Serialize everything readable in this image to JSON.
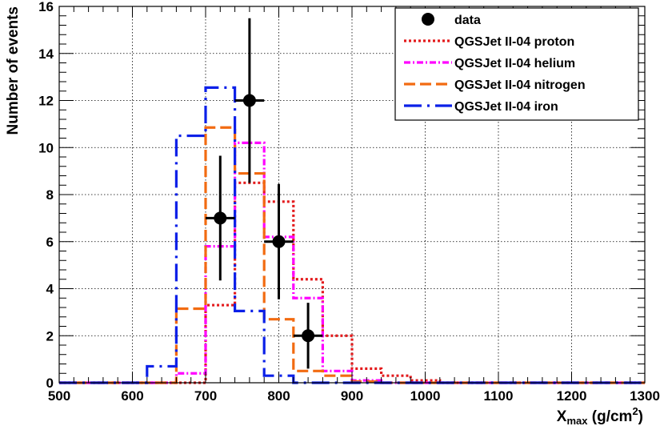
{
  "chart_data": {
    "type": "histogram",
    "xlabel_main": "X",
    "xlabel_sub": "max",
    "xlabel_unit": " (g/cm",
    "xlabel_sup": "2",
    "xlabel_close": ")",
    "ylabel": "Number of events",
    "xlim": [
      500,
      1300
    ],
    "ylim": [
      0,
      16
    ],
    "x_ticks": [
      "500",
      "600",
      "700",
      "800",
      "900",
      "1000",
      "1100",
      "1200",
      "1300"
    ],
    "y_ticks": [
      "0",
      "2",
      "4",
      "6",
      "8",
      "10",
      "12",
      "14",
      "16"
    ],
    "grid": true,
    "legend_position": "top-right",
    "bin_edges": [
      500,
      540,
      580,
      620,
      660,
      700,
      740,
      780,
      820,
      860,
      900,
      940,
      980,
      1020,
      1060,
      1100,
      1140,
      1180,
      1220,
      1260,
      1300
    ],
    "data": {
      "name": "data",
      "x": [
        720,
        760,
        800,
        840
      ],
      "y": [
        7,
        12,
        6,
        2
      ],
      "xerr": 20,
      "yerr_low": [
        2.65,
        3.5,
        2.45,
        1.4
      ],
      "yerr_high": [
        2.65,
        3.5,
        2.45,
        1.4
      ]
    },
    "series": [
      {
        "name": "QGSJet II-04 proton",
        "color": "#e31a1c",
        "style": "dotted",
        "values": [
          0,
          0,
          0,
          0,
          0,
          3.3,
          8.5,
          7.7,
          4.4,
          2.0,
          0.6,
          0.3,
          0.1,
          0,
          0,
          0,
          0,
          0,
          0,
          0
        ]
      },
      {
        "name": "QGSJet II-04 helium",
        "color": "#ff00ff",
        "style": "dashdot",
        "values": [
          0,
          0,
          0,
          0,
          0.4,
          5.8,
          10.2,
          6.2,
          3.6,
          0.5,
          0.1,
          0,
          0,
          0,
          0,
          0,
          0,
          0,
          0,
          0
        ]
      },
      {
        "name": "QGSJet II-04 nitrogen",
        "color": "#f26b11",
        "style": "dashed",
        "values": [
          0,
          0,
          0,
          0,
          3.15,
          10.85,
          8.9,
          2.7,
          0.5,
          0.3,
          0.05,
          0,
          0,
          0,
          0,
          0,
          0,
          0,
          0,
          0
        ]
      },
      {
        "name": "QGSJet II-04 iron",
        "color": "#0b20e8",
        "style": "longdashdot",
        "values": [
          0,
          0,
          0,
          0.7,
          10.5,
          12.55,
          3.05,
          0.3,
          0,
          0,
          0,
          0,
          0,
          0,
          0,
          0,
          0,
          0,
          0,
          0
        ]
      }
    ]
  }
}
